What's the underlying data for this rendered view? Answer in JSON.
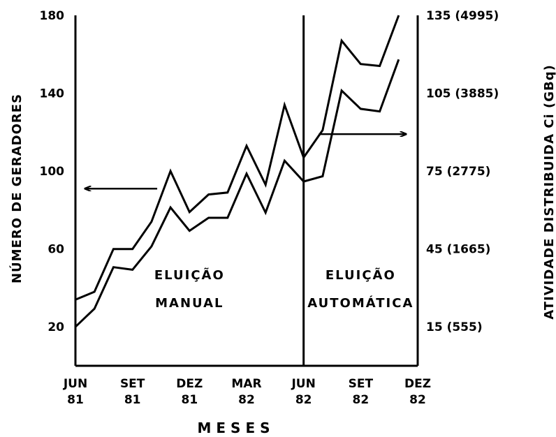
{
  "chart_data": {
    "type": "line",
    "title": "",
    "xlabel": "MESES",
    "ylabel_left": "NÚMERO DE GERADORES",
    "ylabel_right": "ATIVIDADE DISTRIBUIDA Ci (GBq)",
    "x_ticks": [
      {
        "month": 0,
        "line1": "JUN",
        "line2": "81"
      },
      {
        "month": 3,
        "line1": "SET",
        "line2": "81"
      },
      {
        "month": 6,
        "line1": "DEZ",
        "line2": "81"
      },
      {
        "month": 9,
        "line1": "MAR",
        "line2": "82"
      },
      {
        "month": 12,
        "line1": "JUN",
        "line2": "82"
      },
      {
        "month": 15,
        "line1": "SET",
        "line2": "82"
      },
      {
        "month": 18,
        "line1": "DEZ",
        "line2": "82"
      }
    ],
    "xlim": [
      0,
      18
    ],
    "ylim_left": [
      0,
      180
    ],
    "left_ticks": [
      "20",
      "60",
      "100",
      "140",
      "180"
    ],
    "left_tick_values": [
      20,
      60,
      100,
      140,
      180
    ],
    "ylim_right": [
      0,
      135
    ],
    "right_ticks": [
      "15 (555)",
      "45 (1665)",
      "75 (2775)",
      "105 (3885)",
      "135 (4995)"
    ],
    "right_tick_values": [
      15,
      45,
      75,
      105,
      135
    ],
    "series": [
      {
        "axis": "left",
        "x": [
          0,
          1,
          2,
          3,
          4,
          5,
          6,
          7,
          8,
          9,
          10,
          11,
          12,
          13,
          14,
          15,
          16,
          17
        ],
        "values": [
          34,
          38,
          60,
          60,
          74,
          100,
          79,
          88,
          89,
          113,
          93,
          134,
          107,
          121,
          167,
          155,
          154,
          180
        ]
      },
      {
        "axis": "right",
        "x": [
          0,
          1,
          2,
          3,
          4,
          5,
          6,
          7,
          8,
          9,
          10,
          11,
          12,
          13,
          14,
          15,
          16,
          17
        ],
        "values": [
          15,
          22,
          38,
          37,
          46,
          61,
          52,
          57,
          57,
          74,
          59,
          79,
          71,
          73,
          106,
          99,
          98,
          118
        ]
      }
    ],
    "divider_month": 12,
    "regions": [
      {
        "line1": "ELUIÇÃO",
        "line2": "MANUAL",
        "x_center": 6
      },
      {
        "line1": "ELUIÇÃO",
        "line2": "AUTOMÁTICA",
        "x_center": 15
      }
    ],
    "arrows": [
      {
        "direction": "left",
        "from_x": 4.3,
        "to_x": 0.5,
        "y_left": 91
      },
      {
        "direction": "right",
        "from_x": 12.8,
        "to_x": 17.4,
        "y_left": 119
      }
    ],
    "grid": false,
    "legend": "none"
  }
}
